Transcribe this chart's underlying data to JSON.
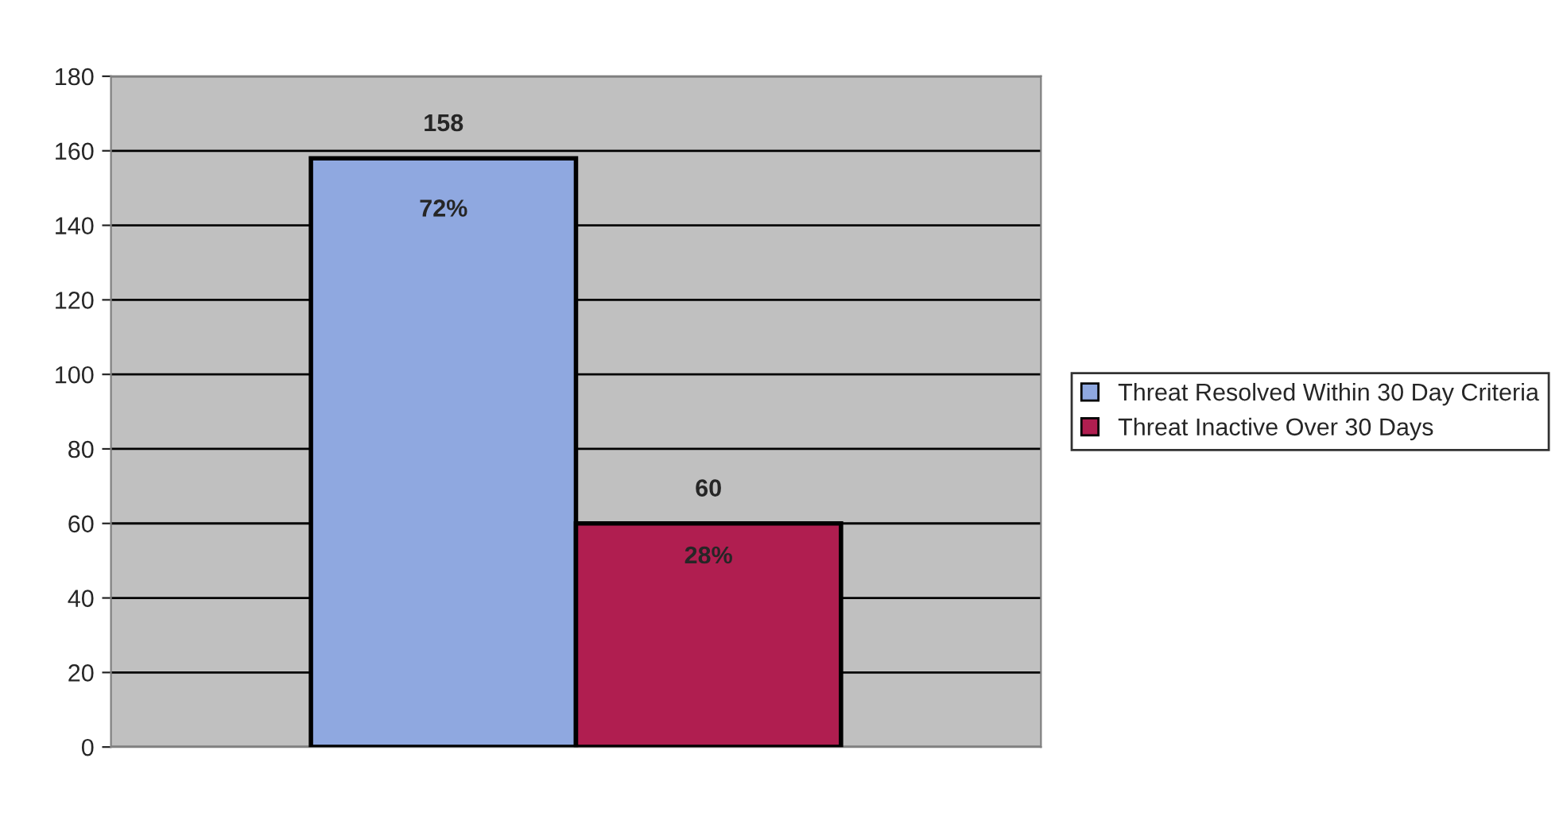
{
  "chart_data": {
    "type": "bar",
    "categories": [
      null
    ],
    "series": [
      {
        "name": "Threat Resolved Within 30 Day Criteria",
        "color": "#8fa8e0",
        "values": [
          158
        ]
      },
      {
        "name": "Threat Inactive Over 30 Days",
        "color": "#b01e50",
        "values": [
          60
        ]
      }
    ],
    "ylim": [
      0,
      180
    ],
    "yticks": [
      0,
      20,
      40,
      60,
      80,
      100,
      120,
      140,
      160,
      180
    ],
    "grid": "y",
    "legend": "right",
    "data_labels": true,
    "annotations": [
      "72%",
      "28%"
    ]
  }
}
